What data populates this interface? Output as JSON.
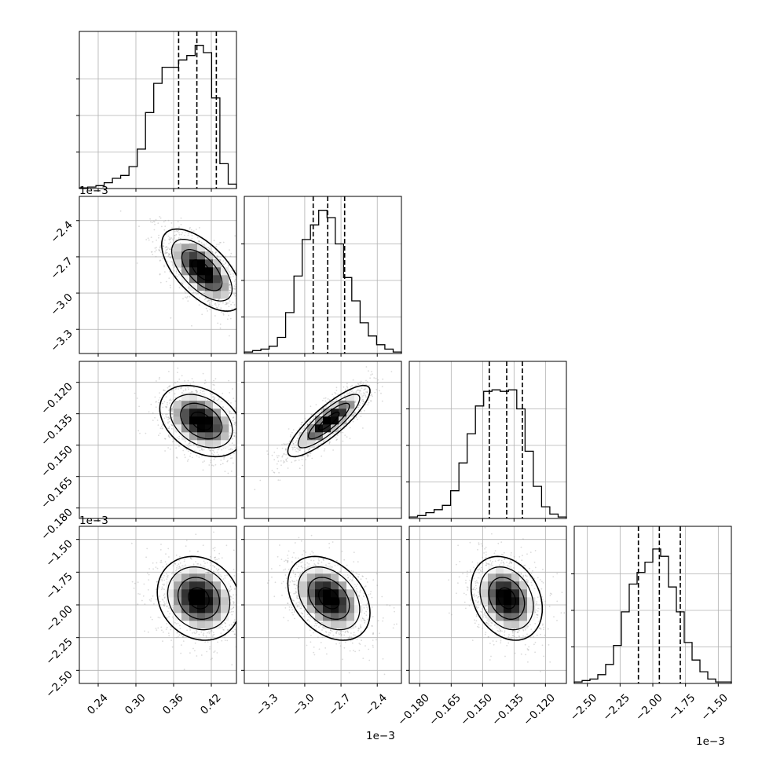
{
  "chart_data": {
    "type": "corner",
    "parameters": [
      {
        "range": [
          0.21,
          0.46
        ],
        "ticks": [
          0.24,
          0.3,
          0.36,
          0.42
        ],
        "tick_labels": [
          "0.24",
          "0.30",
          "0.36",
          "0.42"
        ],
        "offset_label": "1e−3",
        "quantiles": [
          0.368,
          0.397,
          0.428
        ],
        "hist": [
          0.005,
          0.01,
          0.02,
          0.04,
          0.07,
          0.09,
          0.15,
          0.27,
          0.52,
          0.72,
          0.83,
          0.83,
          0.88,
          0.91,
          0.98,
          0.93,
          0.62,
          0.17,
          0.03
        ]
      },
      {
        "range": [
          -3.5,
          -2.2
        ],
        "ticks": [
          -2.4,
          -2.7,
          -3.0,
          -3.3
        ],
        "tick_labels": [
          "−2.4",
          "−2.7",
          "−3.0",
          "−3.3"
        ],
        "offset_label": "1e−3",
        "quantiles": [
          -2.93,
          -2.81,
          -2.67
        ],
        "hist": [
          0.01,
          0.02,
          0.03,
          0.05,
          0.11,
          0.28,
          0.53,
          0.78,
          0.88,
          0.98,
          0.93,
          0.75,
          0.52,
          0.36,
          0.21,
          0.12,
          0.06,
          0.03,
          0.01
        ]
      },
      {
        "range": [
          -0.185,
          -0.11
        ],
        "ticks": [
          -0.18,
          -0.165,
          -0.15,
          -0.135,
          -0.12
        ],
        "tick_labels": [
          "−0.180",
          "−0.165",
          "−0.150",
          "−0.135",
          "−0.120"
        ],
        "offset_label": "1e−3",
        "quantiles": [
          -0.1468,
          -0.1385,
          -0.131
        ],
        "hist": [
          0.01,
          0.02,
          0.04,
          0.06,
          0.09,
          0.19,
          0.38,
          0.58,
          0.77,
          0.87,
          0.88,
          0.87,
          0.88,
          0.75,
          0.46,
          0.22,
          0.08,
          0.03,
          0.01
        ]
      },
      {
        "range": [
          -2.6,
          -1.4
        ],
        "ticks": [
          -2.5,
          -2.25,
          -2.0,
          -1.75,
          -1.5
        ],
        "tick_labels": [
          "−2.50",
          "−2.25",
          "−2.00",
          "−1.75",
          "−1.50"
        ],
        "offset_label": "1e−3",
        "quantiles": [
          -2.11,
          -1.95,
          -1.79
        ],
        "hist": [
          0.01,
          0.02,
          0.03,
          0.06,
          0.13,
          0.26,
          0.49,
          0.68,
          0.76,
          0.83,
          0.92,
          0.87,
          0.66,
          0.49,
          0.28,
          0.16,
          0.08,
          0.03,
          0.01,
          0.01
        ]
      }
    ],
    "pairs": [
      {
        "row": 1,
        "col": 0,
        "mean": [
          0.405,
          -2.81
        ],
        "sd": [
          0.032,
          0.17
        ],
        "corr": -0.62
      },
      {
        "row": 2,
        "col": 0,
        "mean": [
          0.404,
          -0.1385
        ],
        "sd": [
          0.033,
          0.0085
        ],
        "corr": -0.35
      },
      {
        "row": 2,
        "col": 1,
        "mean": [
          -2.8,
          -0.1385
        ],
        "sd": [
          0.17,
          0.0085
        ],
        "corr": 0.85
      },
      {
        "row": 3,
        "col": 0,
        "mean": [
          0.4,
          -1.95
        ],
        "sd": [
          0.033,
          0.16
        ],
        "corr": -0.15
      },
      {
        "row": 3,
        "col": 1,
        "mean": [
          -2.8,
          -1.95
        ],
        "sd": [
          0.17,
          0.16
        ],
        "corr": -0.35
      },
      {
        "row": 3,
        "col": 2,
        "mean": [
          -0.1385,
          -1.95
        ],
        "sd": [
          0.0085,
          0.16
        ],
        "corr": -0.25
      }
    ],
    "grid": true,
    "contour_levels": [
      0.5,
      1.0,
      1.5,
      2.0
    ],
    "colors": {
      "line": "#000000",
      "grid": "#b0b0b0",
      "points": "#999999"
    }
  }
}
